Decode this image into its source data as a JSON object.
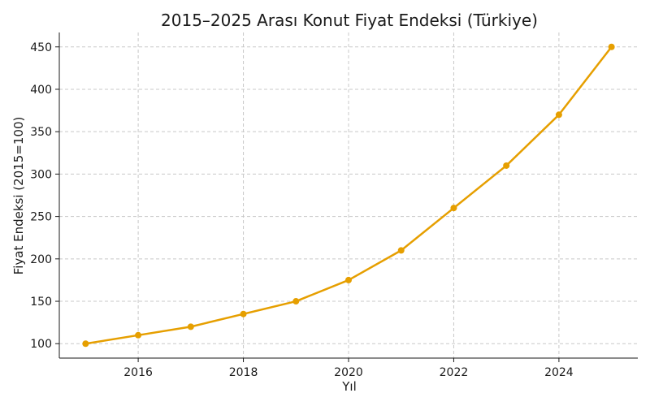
{
  "chart_data": {
    "type": "line",
    "title": "2015–2025 Arası Konut Fiyat Endeksi (Türkiye)",
    "xlabel": "Yıl",
    "ylabel": "Fiyat Endeksi (2015=100)",
    "xlim": [
      2014.5,
      2025.5
    ],
    "ylim": [
      83,
      467
    ],
    "xticks": [
      2016,
      2018,
      2020,
      2022,
      2024
    ],
    "yticks": [
      100,
      150,
      200,
      250,
      300,
      350,
      400,
      450
    ],
    "grid": true,
    "series": [
      {
        "color": "#E69F00",
        "x": [
          2015,
          2016,
          2017,
          2018,
          2019,
          2020,
          2021,
          2022,
          2023,
          2024,
          2025
        ],
        "y": [
          100,
          110,
          120,
          135,
          150,
          175,
          210,
          260,
          310,
          370,
          450
        ]
      }
    ]
  }
}
